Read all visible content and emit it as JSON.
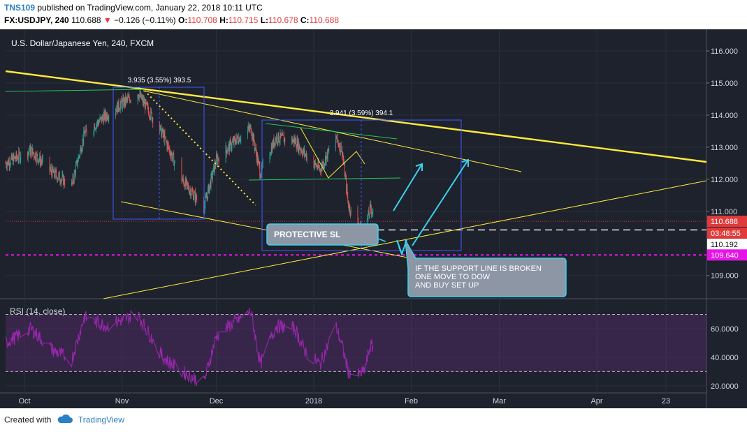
{
  "header": {
    "username": "TNS109",
    "published_text": "published on TradingView.com, January 22, 2018 10:11 UTC",
    "symbol": "FX:USDJPY, 240",
    "last": "110.688",
    "change": "−0.126 (−0.11%)",
    "o_label": "O:",
    "o_value": "110.708",
    "h_label": "H:",
    "h_value": "110.715",
    "l_label": "L:",
    "l_value": "110.678",
    "c_label": "C:",
    "c_value": "110.688"
  },
  "footer": {
    "created_with": "Created with",
    "brand": "TradingView"
  },
  "chart_data": {
    "type": "line",
    "title": "U.S. Dollar/Japanese Yen, 240, FXCM",
    "price_axis": {
      "ticks": [
        "116.000",
        "115.000",
        "114.000",
        "113.000",
        "112.000",
        "111.000",
        "109.000"
      ],
      "ylim": [
        108.45,
        116.5
      ]
    },
    "time_axis": {
      "ticks": [
        "Oct",
        "Nov",
        "Dec",
        "2018",
        "Feb",
        "Mar",
        "Apr",
        "23"
      ]
    },
    "price_labels": [
      {
        "text": "110.688",
        "value": 110.688,
        "color": "#e03a3a"
      },
      {
        "text": "03:48:55",
        "value": 110.42,
        "color": "#e03a3a"
      },
      {
        "text": "110.192",
        "value": 110.192,
        "color": "#ffffff"
      },
      {
        "text": "109.640",
        "value": 109.64,
        "color": "#e614e6"
      }
    ],
    "measure_labels": [
      "3.935 (3.55%) 393.5",
      "3.941 (3.59%) 394.1"
    ],
    "callouts": {
      "protective_sl": "PROTECTIVE SL",
      "support_note": [
        "IF THE SUPPORT LINE IS BROKEN",
        "ONE MOVE TO DOW",
        "AND BUY SET UP"
      ]
    },
    "price_series_keypoints": [
      {
        "x": "Sep 25",
        "y": 112.5
      },
      {
        "x": "Oct 3",
        "y": 112.9
      },
      {
        "x": "Oct 10",
        "y": 112.2
      },
      {
        "x": "Oct 16",
        "y": 111.8
      },
      {
        "x": "Oct 20",
        "y": 113.4
      },
      {
        "x": "Oct 27",
        "y": 114.0
      },
      {
        "x": "Nov 6",
        "y": 114.7
      },
      {
        "x": "Nov 14",
        "y": 113.4
      },
      {
        "x": "Nov 20",
        "y": 112.0
      },
      {
        "x": "Nov 27",
        "y": 111.1
      },
      {
        "x": "Dec 1",
        "y": 112.6
      },
      {
        "x": "Dec 7",
        "y": 113.2
      },
      {
        "x": "Dec 12",
        "y": 113.6
      },
      {
        "x": "Dec 15",
        "y": 112.2
      },
      {
        "x": "Dec 20",
        "y": 113.3
      },
      {
        "x": "Dec 26",
        "y": 113.2
      },
      {
        "x": "Dec 29",
        "y": 112.8
      },
      {
        "x": "Jan 3",
        "y": 112.3
      },
      {
        "x": "Jan 8",
        "y": 113.3
      },
      {
        "x": "Jan 10",
        "y": 112.9
      },
      {
        "x": "Jan 12",
        "y": 111.2
      },
      {
        "x": "Jan 15",
        "y": 110.6
      },
      {
        "x": "Jan 17",
        "y": 110.3
      },
      {
        "x": "Jan 19",
        "y": 111.1
      },
      {
        "x": "Jan 22",
        "y": 110.688
      }
    ],
    "rsi": {
      "label": "RSI (14, close)",
      "ticks": [
        "60.0000",
        "40.0000",
        "20.0000"
      ],
      "ylim": [
        16,
        80
      ],
      "bands": [
        70,
        30
      ],
      "keypoints": [
        {
          "x": "Sep 25",
          "y": 50
        },
        {
          "x": "Oct 3",
          "y": 60
        },
        {
          "x": "Oct 10",
          "y": 45
        },
        {
          "x": "Oct 16",
          "y": 38
        },
        {
          "x": "Oct 20",
          "y": 68
        },
        {
          "x": "Oct 27",
          "y": 62
        },
        {
          "x": "Nov 6",
          "y": 70
        },
        {
          "x": "Nov 14",
          "y": 40
        },
        {
          "x": "Nov 20",
          "y": 30
        },
        {
          "x": "Nov 27",
          "y": 22
        },
        {
          "x": "Dec 1",
          "y": 55
        },
        {
          "x": "Dec 7",
          "y": 65
        },
        {
          "x": "Dec 12",
          "y": 72
        },
        {
          "x": "Dec 15",
          "y": 35
        },
        {
          "x": "Dec 20",
          "y": 62
        },
        {
          "x": "Dec 26",
          "y": 60
        },
        {
          "x": "Dec 29",
          "y": 45
        },
        {
          "x": "Jan 3",
          "y": 35
        },
        {
          "x": "Jan 8",
          "y": 62
        },
        {
          "x": "Jan 10",
          "y": 48
        },
        {
          "x": "Jan 12",
          "y": 30
        },
        {
          "x": "Jan 15",
          "y": 27
        },
        {
          "x": "Jan 17",
          "y": 30
        },
        {
          "x": "Jan 19",
          "y": 48
        },
        {
          "x": "Jan 22",
          "y": 45
        }
      ]
    },
    "colors": {
      "background": "#1e222d",
      "bull": "#26a69a",
      "bear": "#ef5350",
      "trendline": "#ffeb3b",
      "green_line": "#22c55e",
      "arrow": "#39d3f0",
      "support": "#e614e6",
      "rsi_line": "#9c27b0"
    }
  }
}
